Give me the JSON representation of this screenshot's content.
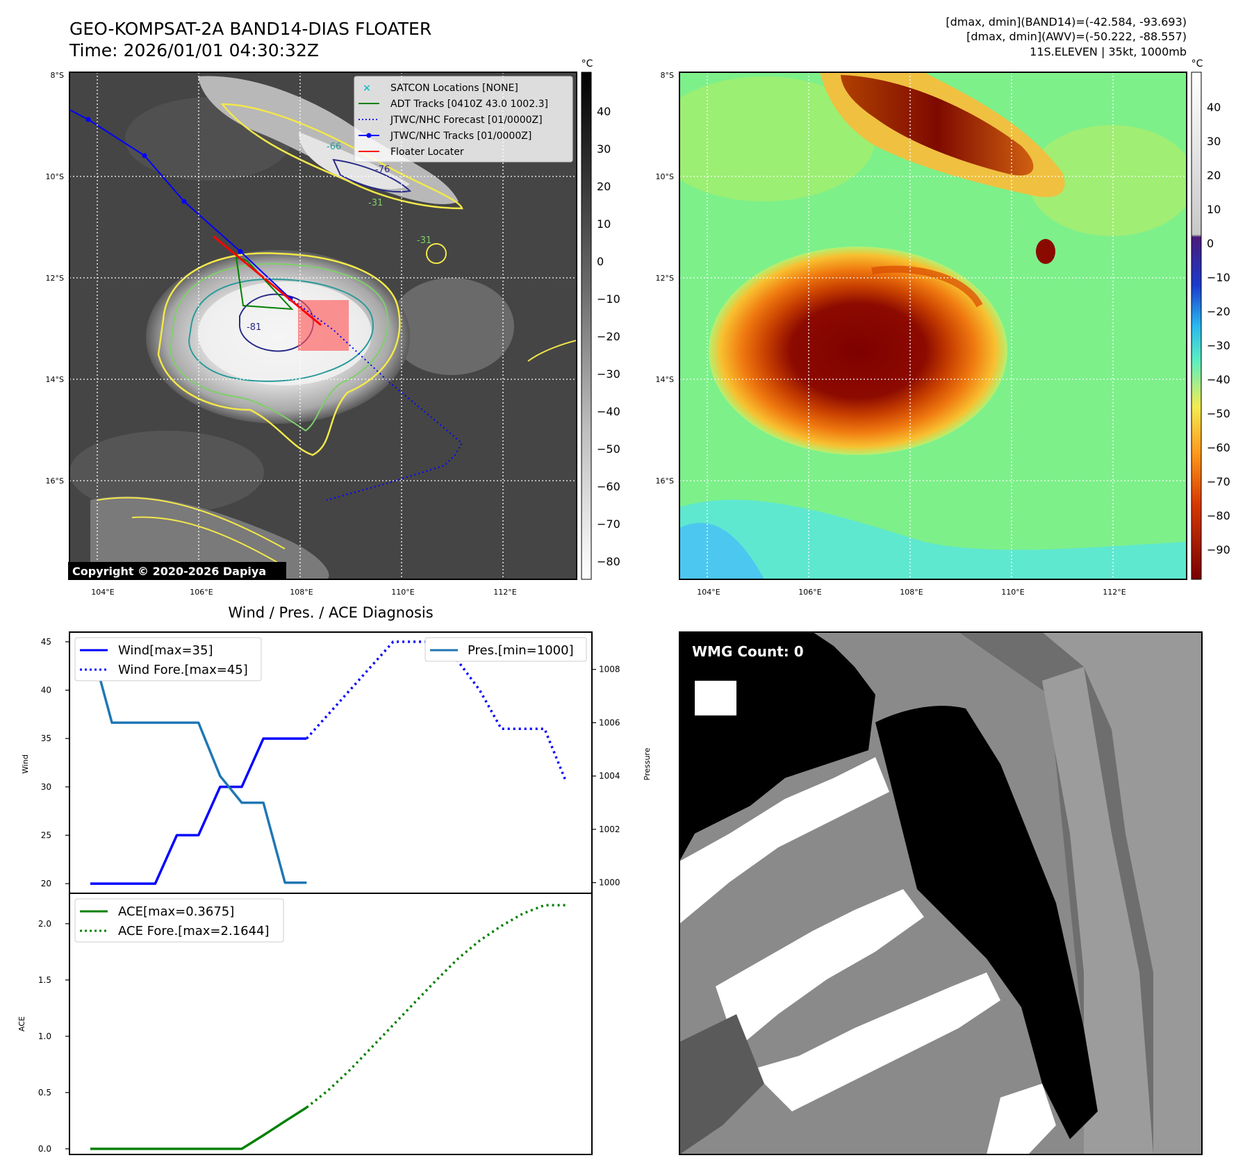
{
  "header": {
    "title_line1": "GEO-KOMPSAT-2A BAND14-DIAS FLOATER",
    "title_line2": "Time: 2026/01/01 04:30:32Z",
    "info_line1": "[dmax, dmin](BAND14)=(-42.584, -93.693)",
    "info_line2": "[dmax, dmin](AWV)=(-50.222, -88.557)",
    "info_line3": "11S.ELEVEN | 35kt, 1000mb"
  },
  "ir_panel": {
    "unit": "°C",
    "colorbar_ticks": [
      "40",
      "30",
      "20",
      "10",
      "0",
      "−10",
      "−20",
      "−30",
      "−40",
      "−50",
      "−60",
      "−70",
      "−80"
    ],
    "lat_labels": [
      "8°S",
      "10°S",
      "12°S",
      "14°S",
      "16°S"
    ],
    "lon_labels": [
      "104°E",
      "106°E",
      "108°E",
      "110°E",
      "112°E"
    ],
    "copyright": "Copyright © 2020-2026 Dapiya",
    "legend": [
      {
        "label": "SATCON Locations [NONE]",
        "color": "#17becf"
      },
      {
        "label": "ADT Tracks [0410Z 43.0 1002.3]",
        "color": "#008000"
      },
      {
        "label": "JTWC/NHC Forecast [01/0000Z]",
        "color": "#0000ff"
      },
      {
        "label": "JTWC/NHC Tracks [01/0000Z]",
        "color": "#0000ff"
      },
      {
        "label": "Floater Locater",
        "color": "#ff0000"
      }
    ],
    "contour_labels": [
      "-31",
      "-76",
      "-81",
      "-66",
      "-31"
    ]
  },
  "awv_panel": {
    "unit": "°C",
    "colorbar_ticks": [
      "40",
      "30",
      "20",
      "10",
      "0",
      "−10",
      "−20",
      "−30",
      "−40",
      "−50",
      "−60",
      "−70",
      "−80",
      "−90"
    ],
    "lat_labels": [
      "8°S",
      "10°S",
      "12°S",
      "14°S",
      "16°S"
    ],
    "lon_labels": [
      "104°E",
      "106°E",
      "108°E",
      "110°E",
      "112°E"
    ]
  },
  "wmg_panel": {
    "badge": "WMG Count: 0"
  },
  "chart_data": [
    {
      "type": "line",
      "title": "Wind / Pres. / ACE Diagnosis",
      "ylabel": "Wind",
      "ylabel_right": "Pressure",
      "ylim": [
        19,
        46
      ],
      "ylim_right": [
        999.6,
        1009.4
      ],
      "x": [
        0,
        1,
        2,
        3,
        4,
        5,
        6,
        7,
        8,
        9,
        10,
        11,
        12,
        13,
        14,
        15,
        16,
        17,
        18,
        19,
        20,
        21,
        22
      ],
      "yticks": [
        "20",
        "25",
        "30",
        "35",
        "40",
        "45"
      ],
      "yticks_right": [
        "1000",
        "1002",
        "1004",
        "1006",
        "1008"
      ],
      "series": [
        {
          "name": "Wind[max=35]",
          "axis": "left",
          "style": "solid",
          "color": "#0000ff",
          "x": [
            0,
            1,
            2,
            3,
            4,
            5,
            6,
            7,
            8,
            9,
            10
          ],
          "values": [
            20,
            20,
            20,
            20,
            25,
            25,
            30,
            30,
            35,
            35,
            35
          ]
        },
        {
          "name": "Wind Fore.[max=45]",
          "axis": "left",
          "style": "dotted",
          "color": "#0000ff",
          "x": [
            10,
            11,
            12,
            13,
            14,
            15,
            16,
            17,
            18,
            19,
            20,
            21,
            22
          ],
          "values": [
            35,
            37.5,
            40,
            42.5,
            45,
            45,
            45,
            43,
            40,
            36,
            36,
            36,
            30.5
          ]
        },
        {
          "name": "Pres.[min=1000]",
          "axis": "right",
          "style": "solid",
          "color": "#1f77b4",
          "x": [
            0,
            1,
            2,
            3,
            4,
            5,
            6,
            7,
            8,
            9,
            10
          ],
          "values": [
            1009,
            1006,
            1006,
            1006,
            1006,
            1006,
            1004,
            1003,
            1003,
            1000,
            1000
          ]
        }
      ]
    },
    {
      "type": "line",
      "ylabel": "ACE",
      "ylim": [
        -0.05,
        2.27
      ],
      "yticks": [
        "0.0",
        "0.5",
        "1.0",
        "1.5",
        "2.0"
      ],
      "x": [
        0,
        1,
        2,
        3,
        4,
        5,
        6,
        7,
        8,
        9,
        10,
        11,
        12,
        13,
        14,
        15,
        16,
        17,
        18,
        19,
        20,
        21,
        22
      ],
      "series": [
        {
          "name": "ACE[max=0.3675]",
          "style": "solid",
          "color": "#008000",
          "x": [
            0,
            1,
            2,
            3,
            4,
            5,
            6,
            7,
            8,
            9,
            10
          ],
          "values": [
            0,
            0,
            0,
            0,
            0,
            0,
            0,
            0,
            0.12,
            0.245,
            0.3675
          ]
        },
        {
          "name": "ACE Fore.[max=2.1644]",
          "style": "dotted",
          "color": "#008000",
          "x": [
            10,
            11,
            12,
            13,
            14,
            15,
            16,
            17,
            18,
            19,
            20,
            21,
            22
          ],
          "values": [
            0.3675,
            0.52,
            0.7,
            0.9,
            1.1,
            1.3,
            1.5,
            1.69,
            1.85,
            1.98,
            2.09,
            2.1644,
            2.1644
          ]
        }
      ]
    }
  ]
}
